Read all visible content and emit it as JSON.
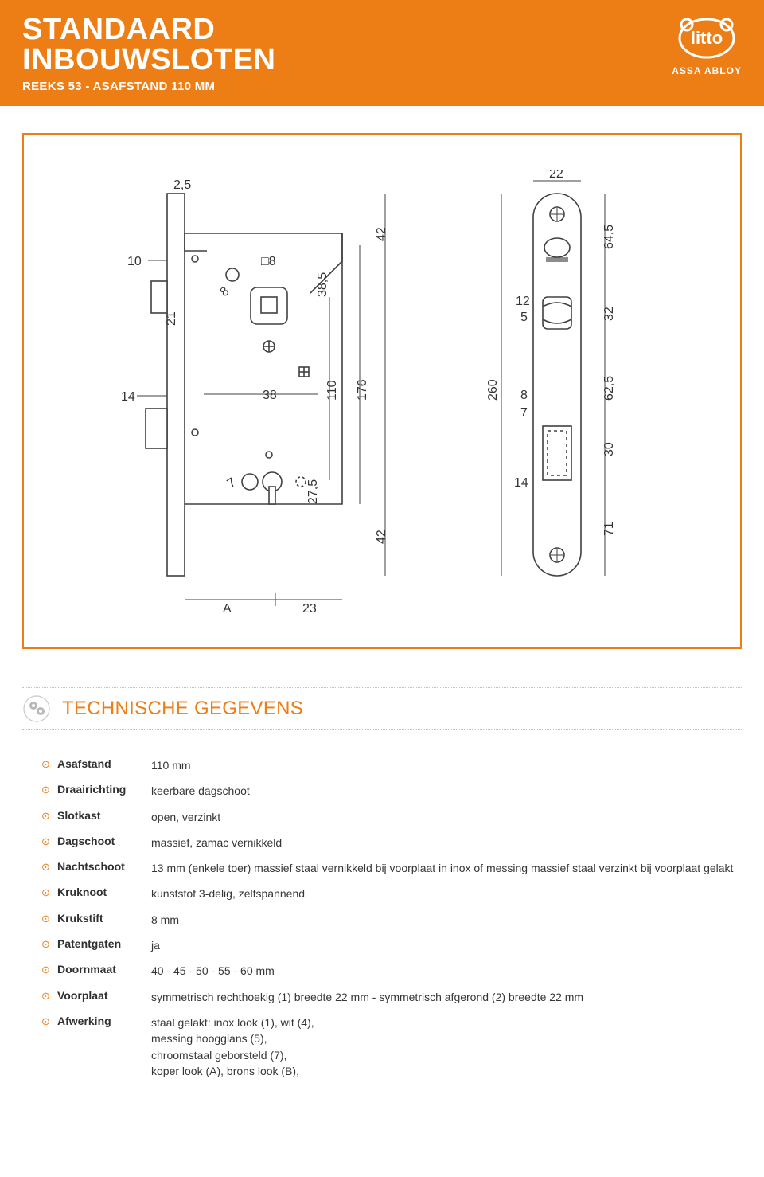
{
  "colors": {
    "brand": "#ed7d15",
    "text": "#3a3a3a",
    "white": "#ffffff",
    "diagram_line": "#404040",
    "diagram_dim": "#333333"
  },
  "header": {
    "title_line1": "STANDAARD",
    "title_line2": "INBOUWSLOTEN",
    "subtitle": "REEKS 53 - ASAFSTAND 110 MM",
    "logo_text": "litto",
    "brand_text": "ASSA ABLOY"
  },
  "diagram": {
    "type": "engineering-drawing",
    "caption": "lock body + strike plate dimensions (mm)",
    "body": {
      "dims": {
        "top_left": "2,5",
        "left_10": "10",
        "sq_8": "8",
        "small_8": "8",
        "left_21": "21",
        "right_38_5": "38,5",
        "right_42_top": "42",
        "mid_38": "38",
        "mid_110": "110",
        "mid_176": "176",
        "mid_14": "14",
        "lower_7": "7",
        "lower_27_5": "27,5",
        "right_42_bot": "42",
        "bottom_A": "A",
        "bottom_23": "23"
      }
    },
    "plate": {
      "dims": {
        "top_22": "22",
        "r_64_5": "64,5",
        "mid_12": "12",
        "mid_5": "5",
        "r_32": "32",
        "left_260": "260",
        "inner_8": "8",
        "inner_7": "7",
        "r_62_5": "62,5",
        "r_30": "30",
        "inner_14": "14",
        "r_71": "71"
      }
    }
  },
  "section_title": "TECHNISCHE GEGEVENS",
  "specs": [
    {
      "label": "Asafstand",
      "value": "110 mm"
    },
    {
      "label": "Draairichting",
      "value": "keerbare dagschoot"
    },
    {
      "label": "Slotkast",
      "value": "open, verzinkt"
    },
    {
      "label": "Dagschoot",
      "value": "massief, zamac vernikkeld"
    },
    {
      "label": "Nachtschoot",
      "value": "13 mm (enkele toer) massief staal vernikkeld bij voorplaat in inox of messing massief staal verzinkt bij voorplaat gelakt"
    },
    {
      "label": "Kruknoot",
      "value": "kunststof 3-delig, zelfspannend"
    },
    {
      "label": "Krukstift",
      "value": "8 mm"
    },
    {
      "label": "Patentgaten",
      "value": "ja"
    },
    {
      "label": "Doornmaat",
      "value": "40 - 45 - 50 - 55 - 60 mm"
    },
    {
      "label": "Voorplaat",
      "value": "symmetrisch rechthoekig (1) breedte 22 mm - symmetrisch afgerond (2) breedte 22 mm"
    },
    {
      "label": "Afwerking",
      "value": "staal gelakt: inox look (1), wit (4),",
      "sublines": [
        "messing hoogglans (5),",
        "chroomstaal geborsteld (7),",
        "koper look (A), brons look (B),"
      ]
    }
  ]
}
